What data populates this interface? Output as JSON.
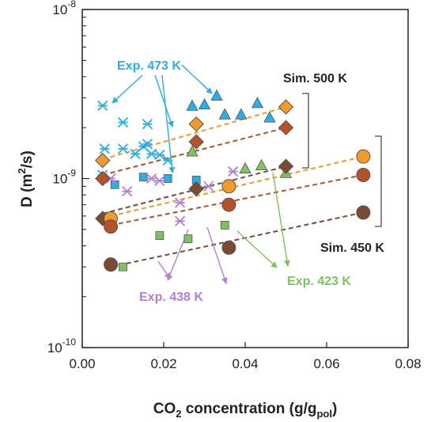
{
  "colors": {
    "exp473": "#2aaee8",
    "exp438": "#b57fd6",
    "exp423": "#7cc35e",
    "sim500": "#f39a2c",
    "sim450": "#b5522a",
    "dark": "#7a4a33",
    "black": "#222222"
  },
  "chart_data": {
    "type": "scatter",
    "xlabel_main": "CO",
    "xlabel_sub1": "2",
    "xlabel_mid": " concentration (g/g",
    "xlabel_sub2": "pol",
    "xlabel_end": ")",
    "ylabel_main": "D (m",
    "ylabel_sup": "2",
    "ylabel_end": "/s)",
    "xlim": [
      0,
      0.08
    ],
    "ylim": [
      1e-10,
      1e-08
    ],
    "yscale": "log",
    "x_ticks": [
      "0.00",
      "0.02",
      "0.04",
      "0.06",
      "0.08"
    ],
    "y_ticks": [
      {
        "base": "10",
        "exp": "-8",
        "value": 1e-08
      },
      {
        "base": "10",
        "exp": "-9",
        "value": 1e-09
      },
      {
        "base": "10",
        "exp": "-10",
        "value": 1e-10
      }
    ],
    "series": [
      {
        "key": "exp473_star",
        "marker": "star",
        "color": "#2aaee8",
        "points": [
          [
            0.005,
            2.7e-09
          ],
          [
            0.0055,
            1.5e-09
          ],
          [
            0.005,
            1.05e-09
          ],
          [
            0.01,
            2.15e-09
          ],
          [
            0.01,
            1.5e-09
          ],
          [
            0.013,
            1.4e-09
          ],
          [
            0.015,
            1.55e-09
          ],
          [
            0.016,
            2.1e-09
          ],
          [
            0.016,
            1.6e-09
          ],
          [
            0.017,
            1.4e-09
          ],
          [
            0.019,
            1.38e-09
          ],
          [
            0.021,
            1.28e-09
          ]
        ]
      },
      {
        "key": "exp473_square",
        "marker": "square",
        "color": "#2aaee8",
        "points": [
          [
            0.008,
            9.2e-10
          ],
          [
            0.015,
            1.02e-09
          ],
          [
            0.021,
            1e-09
          ],
          [
            0.028,
            9.8e-10
          ]
        ]
      },
      {
        "key": "exp473_triangle",
        "marker": "triangle",
        "color": "#2aaee8",
        "points": [
          [
            0.027,
            2.7e-09
          ],
          [
            0.03,
            2.75e-09
          ],
          [
            0.033,
            3.1e-09
          ],
          [
            0.035,
            2.4e-09
          ],
          [
            0.039,
            2.4e-09
          ],
          [
            0.043,
            2.8e-09
          ],
          [
            0.046,
            2.3e-09
          ]
        ]
      },
      {
        "key": "exp438_star",
        "marker": "star",
        "color": "#b57fd6",
        "points": [
          [
            0.007,
            1e-09
          ],
          [
            0.011,
            8.4e-10
          ],
          [
            0.017,
            1e-09
          ],
          [
            0.019,
            9.7e-10
          ],
          [
            0.024,
            7.2e-10
          ],
          [
            0.024,
            5.6e-10
          ],
          [
            0.031,
            9e-10
          ],
          [
            0.037,
            1.1e-09
          ]
        ]
      },
      {
        "key": "exp423_square",
        "marker": "square",
        "color": "#7cc35e",
        "points": [
          [
            0.01,
            3e-10
          ],
          [
            0.019,
            4.6e-10
          ],
          [
            0.026,
            4.4e-10
          ],
          [
            0.035,
            5.3e-10
          ]
        ]
      },
      {
        "key": "exp423_triangle",
        "marker": "triangle",
        "color": "#7cc35e",
        "points": [
          [
            0.027,
            1.45e-09
          ],
          [
            0.04,
            1.15e-09
          ],
          [
            0.044,
            1.2e-09
          ],
          [
            0.05,
            1.08e-09
          ]
        ]
      },
      {
        "key": "sim500_diamond",
        "marker": "diamond",
        "color": "#f39a2c",
        "points": [
          [
            0.005,
            1.28e-09
          ],
          [
            0.028,
            2.1e-09
          ],
          [
            0.05,
            2.65e-09
          ]
        ]
      },
      {
        "key": "sim500_dark_diamond",
        "marker": "diamond",
        "color": "#b5522a",
        "points": [
          [
            0.005,
            1e-09
          ],
          [
            0.028,
            1.65e-09
          ],
          [
            0.05,
            2e-09
          ]
        ]
      },
      {
        "key": "sim500_darkest_diamond",
        "marker": "diamond",
        "color": "#7a4a33",
        "points": [
          [
            0.005,
            5.8e-10
          ],
          [
            0.028,
            8.7e-10
          ],
          [
            0.05,
            1.18e-09
          ]
        ]
      },
      {
        "key": "sim450_circle",
        "marker": "circle",
        "color": "#f39a2c",
        "points": [
          [
            0.007,
            5.8e-10
          ],
          [
            0.036,
            9e-10
          ],
          [
            0.069,
            1.35e-09
          ]
        ]
      },
      {
        "key": "sim450_dark_circle",
        "marker": "circle",
        "color": "#b5522a",
        "points": [
          [
            0.007,
            5.2e-10
          ],
          [
            0.036,
            7e-10
          ],
          [
            0.069,
            1.05e-09
          ]
        ]
      },
      {
        "key": "sim450_darkest_circle",
        "marker": "circle",
        "color": "#7a4a33",
        "points": [
          [
            0.007,
            3.1e-10
          ],
          [
            0.036,
            3.9e-10
          ],
          [
            0.069,
            6.3e-10
          ]
        ]
      }
    ],
    "trendlines": [
      {
        "color": "#f39a2c",
        "from": [
          0.005,
          1.3e-09
        ],
        "to": [
          0.05,
          2.65e-09
        ]
      },
      {
        "color": "#b5522a",
        "from": [
          0.005,
          1.05e-09
        ],
        "to": [
          0.05,
          2e-09
        ]
      },
      {
        "color": "#7a4a33",
        "from": [
          0.005,
          6.2e-10
        ],
        "to": [
          0.05,
          1.18e-09
        ]
      },
      {
        "color": "#f39a2c",
        "from": [
          0.007,
          6e-10
        ],
        "to": [
          0.069,
          1.35e-09
        ]
      },
      {
        "color": "#b5522a",
        "from": [
          0.007,
          5.3e-10
        ],
        "to": [
          0.069,
          1.05e-09
        ]
      },
      {
        "color": "#7a4a33",
        "from": [
          0.007,
          3e-10
        ],
        "to": [
          0.069,
          6.3e-10
        ]
      }
    ],
    "annotations": {
      "exp473": "Exp. 473 K",
      "exp438": "Exp. 438 K",
      "exp423": "Exp. 423 K",
      "sim500": "Sim. 500 K",
      "sim450": "Sim. 450 K"
    }
  }
}
